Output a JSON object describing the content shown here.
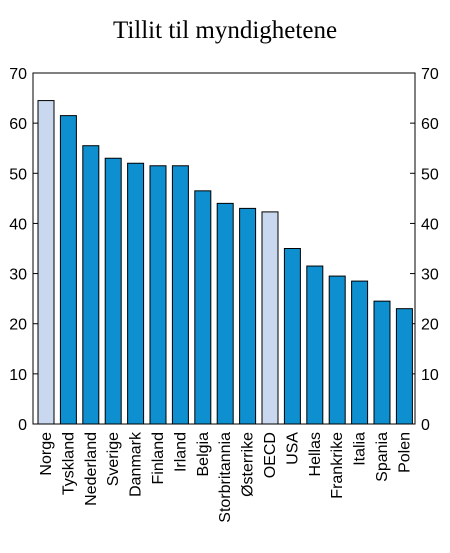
{
  "chart_data": {
    "type": "bar",
    "title": "Tillit til myndighetene",
    "categories": [
      "Norge",
      "Tyskland",
      "Nederland",
      "Sverige",
      "Danmark",
      "Finland",
      "Irland",
      "Belgia",
      "Storbritannia",
      "Østerrike",
      "OECD",
      "USA",
      "Hellas",
      "Frankrike",
      "Italia",
      "Spania",
      "Polen"
    ],
    "values": [
      64.5,
      61.5,
      55.5,
      53,
      52,
      51.5,
      51.5,
      46.5,
      44,
      43,
      42.3,
      35,
      31.5,
      29.5,
      28.5,
      24.5,
      23
    ],
    "highlight": [
      "Norge",
      "OECD"
    ],
    "ylim": [
      0,
      70
    ],
    "yticks": [
      0,
      10,
      20,
      30,
      40,
      50,
      60,
      70
    ],
    "xlabel": "",
    "ylabel": "",
    "grid": false,
    "colors": {
      "bar": "#0d8fd0",
      "highlight": "#c9d8ee",
      "edge": "#000000"
    }
  }
}
